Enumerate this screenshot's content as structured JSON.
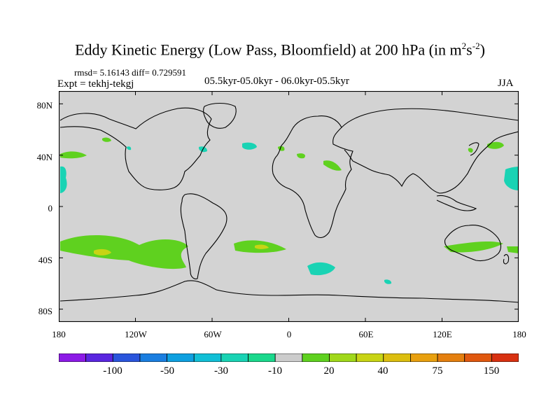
{
  "title": {
    "main": "Eddy Kinetic Energy (Low Pass, Bloomfield) at 200 hPa (in m",
    "sup1": "2",
    "mid": "s",
    "sup2": "-2",
    "end": ")"
  },
  "stats": "rmsd= 5.16143 diff= 0.729591",
  "expt": "Expt = tekhj-tekgj",
  "period": "05.5kyr-05.0kyr - 06.0kyr-05.5kyr",
  "season": "JJA",
  "map": {
    "lat_labels": [
      "80N",
      "40N",
      "0",
      "40S",
      "80S"
    ],
    "lon_labels": [
      "180",
      "120W",
      "60W",
      "0",
      "60E",
      "120E",
      "180"
    ],
    "background": "#d3d3d3",
    "lon_range": [
      -180,
      180
    ],
    "lat_range": [
      -90,
      90
    ]
  },
  "colorbar": {
    "colors": [
      "#8c1ae6",
      "#5a26e0",
      "#2a55dc",
      "#1a7ee0",
      "#0ea0e0",
      "#11bfd6",
      "#19d3b4",
      "#1ad88c",
      "#cccccc",
      "#5fd11f",
      "#a0d81a",
      "#c8d414",
      "#dcbe0f",
      "#e8a00f",
      "#e47f0f",
      "#e0580f",
      "#d83111"
    ],
    "labels": [
      "-100",
      "-50",
      "-30",
      "-10",
      "20",
      "40",
      "75",
      "150"
    ]
  }
}
